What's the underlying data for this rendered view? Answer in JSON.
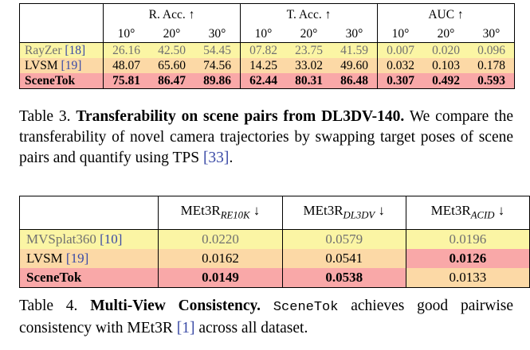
{
  "table3": {
    "group_headers": [
      "R. Acc. ↑",
      "T. Acc. ↑",
      "AUC ↑"
    ],
    "sub_headers": [
      "10°",
      "20°",
      "30°",
      "10°",
      "20°",
      "30°",
      "10°",
      "20°",
      "30°"
    ],
    "rows": [
      {
        "method": "RayZer",
        "cite": "[18]",
        "values": [
          "26.16",
          "42.50",
          "54.45",
          "07.82",
          "23.75",
          "41.59",
          "0.007",
          "0.020",
          "0.096"
        ]
      },
      {
        "method": "LVSM",
        "cite": "[19]",
        "values": [
          "48.07",
          "65.60",
          "74.56",
          "14.25",
          "33.02",
          "49.60",
          "0.032",
          "0.103",
          "0.178"
        ]
      },
      {
        "method": "SceneTok",
        "cite": "",
        "values": [
          "75.81",
          "86.47",
          "89.86",
          "62.44",
          "80.31",
          "86.48",
          "0.307",
          "0.492",
          "0.593"
        ]
      }
    ],
    "row_colors": {
      "yellow": "#fbf5a4",
      "orange": "#fcd9a6",
      "red": "#f9a8a8"
    }
  },
  "caption3": {
    "label": "Table 3.",
    "title": "Transferability on scene pairs from DL3DV-140.",
    "text_a": "We compare the transferability of novel camera trajectories by swapping target poses of scene pairs and quantify using TPS",
    "cite": "[33]",
    "text_b": "."
  },
  "table4": {
    "headers": [
      {
        "base": "MEt3R",
        "sub": "RE10K",
        "arrow": "↓"
      },
      {
        "base": "MEt3R",
        "sub": "DL3DV",
        "arrow": "↓"
      },
      {
        "base": "MEt3R",
        "sub": "ACID",
        "arrow": "↓"
      }
    ],
    "rows": [
      {
        "method": "MVSplat360",
        "cite": "[10]",
        "values": [
          "0.0220",
          "0.0579",
          "0.0196"
        ]
      },
      {
        "method": "LVSM",
        "cite": "[19]",
        "values": [
          "0.0162",
          "0.0541",
          "0.0126"
        ]
      },
      {
        "method": "SceneTok",
        "cite": "",
        "values": [
          "0.0149",
          "0.0538",
          "0.0133"
        ]
      }
    ]
  },
  "caption4": {
    "label": "Table 4.",
    "title": "Multi-View Consistency.",
    "mono": "SceneTok",
    "text_a": "achieves good pairwise consistency with MEt3R",
    "cite": "[1]",
    "text_b": "across all dataset."
  }
}
